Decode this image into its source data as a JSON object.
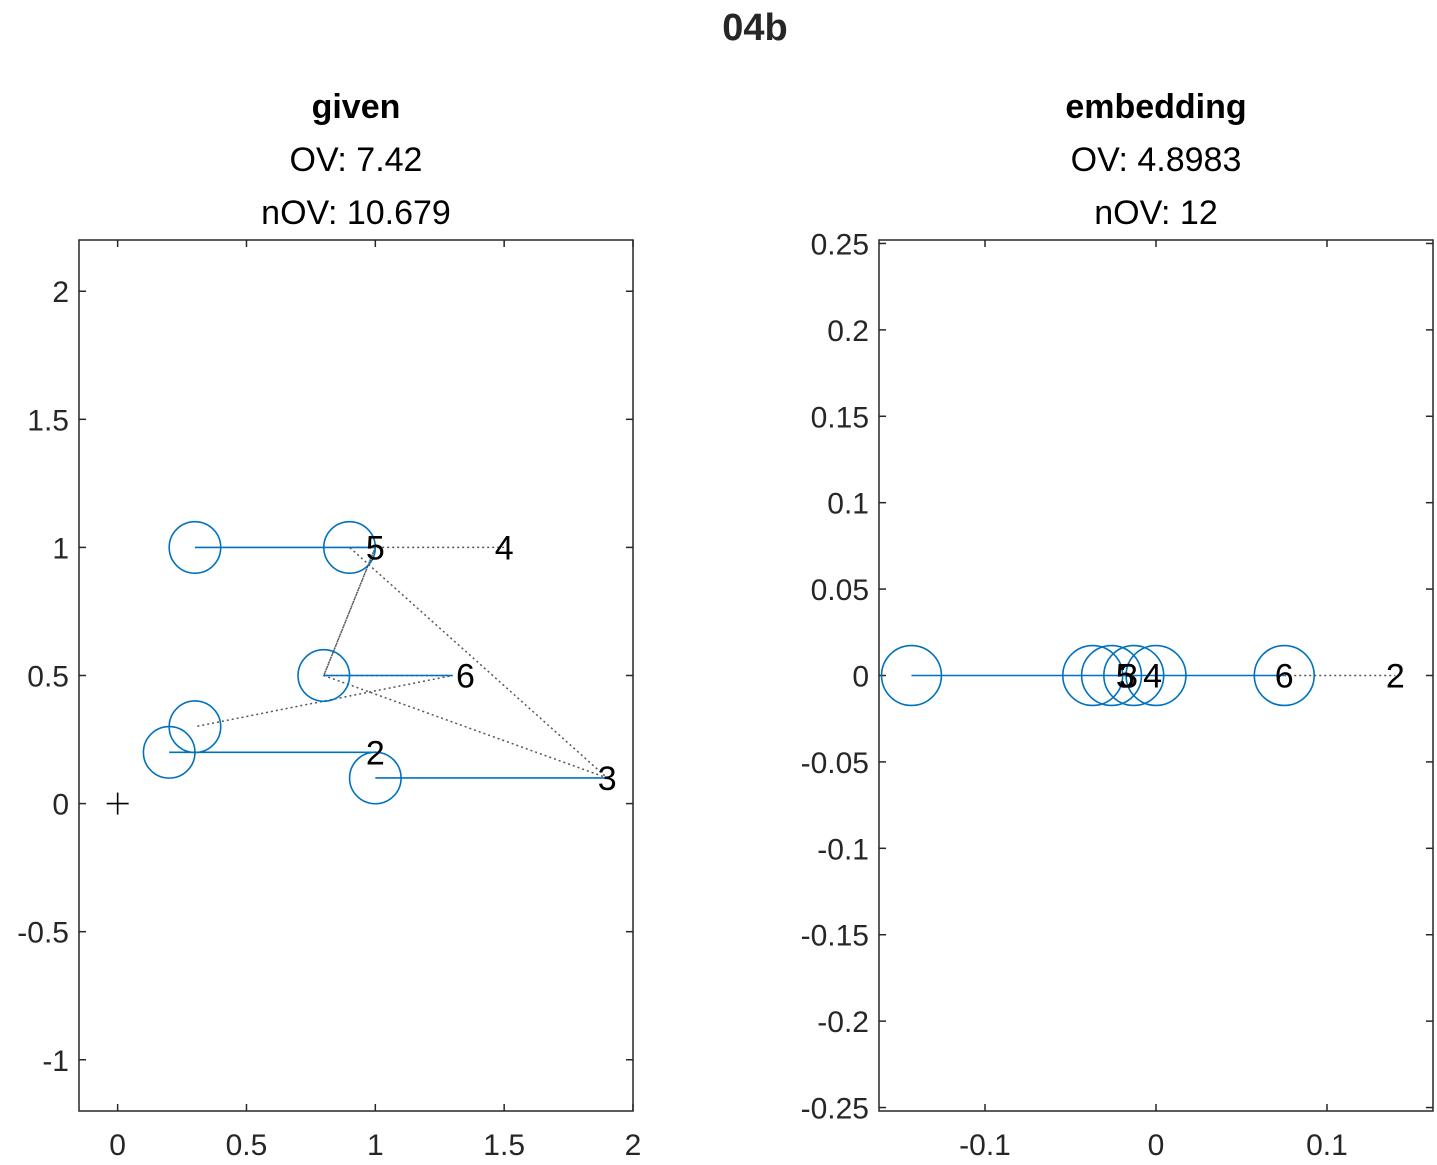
{
  "figure": {
    "title": "04b"
  },
  "chart_data": [
    {
      "type": "scatter",
      "title_lines": [
        "given",
        "OV: 7.42",
        "nOV: 10.679"
      ],
      "xlim": [
        -0.15,
        2.0
      ],
      "ylim": [
        -1.2,
        2.2
      ],
      "xticks": [
        0,
        0.5,
        1,
        1.5,
        2
      ],
      "xtick_labels": [
        "0",
        "0.5",
        "1",
        "1.5",
        "2"
      ],
      "yticks": [
        -1,
        -0.5,
        0,
        0.5,
        1,
        1.5,
        2
      ],
      "ytick_labels": [
        "-1",
        "-0.5",
        "0",
        "0.5",
        "1",
        "1.5",
        "2"
      ],
      "circle_radius": 0.1,
      "origin_marker": [
        0,
        0
      ],
      "circles": [
        {
          "x": 0.3,
          "y": 1.0
        },
        {
          "x": 0.9,
          "y": 1.0
        },
        {
          "x": 0.8,
          "y": 0.5
        },
        {
          "x": 0.3,
          "y": 0.3
        },
        {
          "x": 0.2,
          "y": 0.2
        },
        {
          "x": 1.0,
          "y": 0.1
        }
      ],
      "segments": [
        {
          "from": [
            0.3,
            1.0
          ],
          "to": [
            1.0,
            1.0
          ]
        },
        {
          "from": [
            0.8,
            0.5
          ],
          "to": [
            1.3,
            0.5
          ]
        },
        {
          "from": [
            0.2,
            0.2
          ],
          "to": [
            1.0,
            0.2
          ]
        },
        {
          "from": [
            1.0,
            0.1
          ],
          "to": [
            1.9,
            0.1
          ]
        }
      ],
      "dotted_path": [
        [
          1.5,
          1.0
        ],
        [
          0.9,
          1.0
        ],
        [
          1.9,
          0.1
        ],
        [
          0.8,
          0.5
        ],
        [
          1.0,
          1.0
        ],
        [
          0.8,
          0.5
        ],
        [
          1.3,
          0.5
        ],
        [
          0.3,
          0.3
        ]
      ],
      "labels": [
        {
          "text": "5",
          "x": 1.0,
          "y": 1.0
        },
        {
          "text": "4",
          "x": 1.5,
          "y": 1.0
        },
        {
          "text": "6",
          "x": 1.35,
          "y": 0.5
        },
        {
          "text": "2",
          "x": 1.0,
          "y": 0.2
        },
        {
          "text": "3",
          "x": 1.9,
          "y": 0.1
        }
      ]
    },
    {
      "type": "scatter",
      "title_lines": [
        "embedding",
        "OV: 4.8983",
        "nOV: 12"
      ],
      "xlim": [
        -0.162,
        0.162
      ],
      "ylim": [
        -0.252,
        0.252
      ],
      "xticks": [
        -0.1,
        0,
        0.1
      ],
      "xtick_labels": [
        "-0.1",
        "0",
        "0.1"
      ],
      "yticks": [
        -0.25,
        -0.2,
        -0.15,
        -0.1,
        -0.05,
        0,
        0.05,
        0.1,
        0.15,
        0.2,
        0.25
      ],
      "ytick_labels": [
        "-0.25",
        "-0.2",
        "-0.15",
        "-0.1",
        "-0.05",
        "0",
        "0.05",
        "0.1",
        "0.15",
        "0.2",
        "0.25"
      ],
      "circle_radius": 0.0175,
      "circles": [
        {
          "x": -0.143,
          "y": 0
        },
        {
          "x": -0.037,
          "y": 0
        },
        {
          "x": -0.026,
          "y": 0
        },
        {
          "x": -0.013,
          "y": 0
        },
        {
          "x": 0.0,
          "y": 0
        },
        {
          "x": 0.075,
          "y": 0
        }
      ],
      "segments": [
        {
          "from": [
            -0.143,
            0
          ],
          "to": [
            0.075,
            0
          ]
        }
      ],
      "dotted_path": [
        [
          0.075,
          0
        ],
        [
          0.14,
          0
        ]
      ],
      "labels": [
        {
          "text": "5",
          "x": -0.018,
          "y": 0
        },
        {
          "text": "3",
          "x": -0.016,
          "y": 0
        },
        {
          "text": "4",
          "x": -0.002,
          "y": 0
        },
        {
          "text": "6",
          "x": 0.075,
          "y": 0
        },
        {
          "text": "2",
          "x": 0.14,
          "y": 0
        }
      ]
    }
  ]
}
